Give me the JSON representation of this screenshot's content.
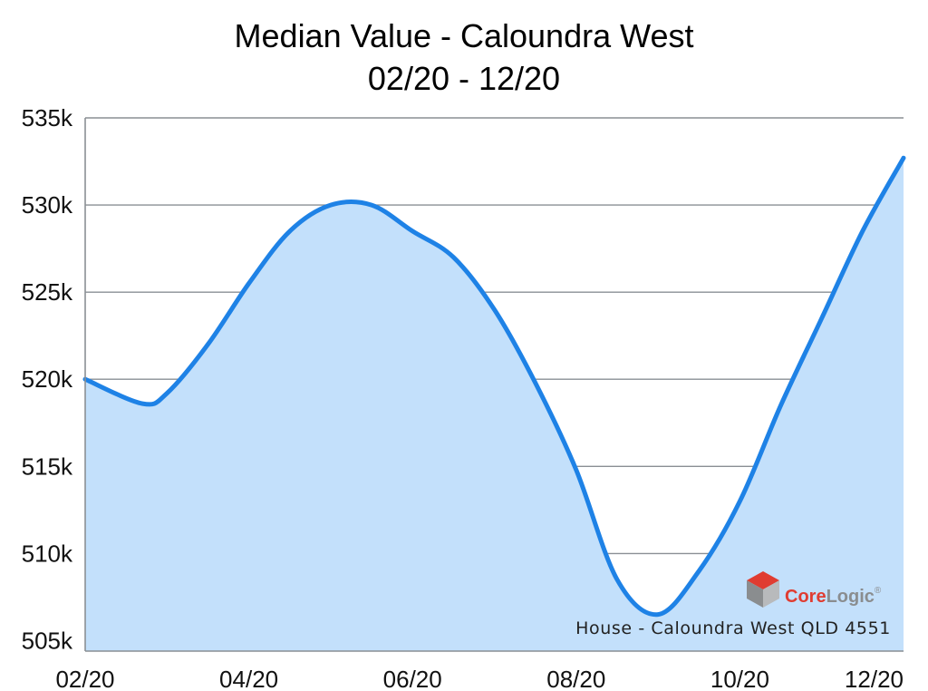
{
  "chart_data": {
    "type": "area",
    "title": "Median Value - Caloundra West",
    "subtitle": "02/20 - 12/20",
    "xlabel": "",
    "ylabel": "",
    "x_tick_labels": [
      "02/20",
      "04/20",
      "06/20",
      "08/20",
      "10/20",
      "12/20"
    ],
    "y_tick_labels": [
      "535k",
      "530k",
      "525k",
      "520k",
      "515k",
      "510k",
      "505k"
    ],
    "ylim": [
      504400,
      535000
    ],
    "grid": true,
    "x": [
      0,
      0.7,
      1,
      1.5,
      2,
      2.5,
      3,
      3.5,
      4,
      4.5,
      5,
      5.5,
      6,
      6.5,
      7,
      7.5,
      8,
      8.5,
      9,
      9.5,
      10
    ],
    "values": [
      520000,
      518600,
      519200,
      522000,
      525500,
      528500,
      530000,
      530000,
      528500,
      527000,
      524000,
      519800,
      514800,
      508500,
      506500,
      509000,
      513000,
      518500,
      523500,
      528500,
      532700
    ],
    "series": [
      {
        "name": "House - Caloundra West QLD 4551",
        "color": "#1e82e6",
        "fill": "#c3e0fb"
      }
    ],
    "caption": "House - Caloundra West QLD 4551",
    "logo": {
      "text_core": "Core",
      "text_logic": "Logic",
      "trademark": "®"
    }
  },
  "colors": {
    "line": "#1e82e6",
    "fill": "#c3e0fb",
    "logo_red": "#e03c31",
    "logo_gray": "#8a8d8f"
  }
}
